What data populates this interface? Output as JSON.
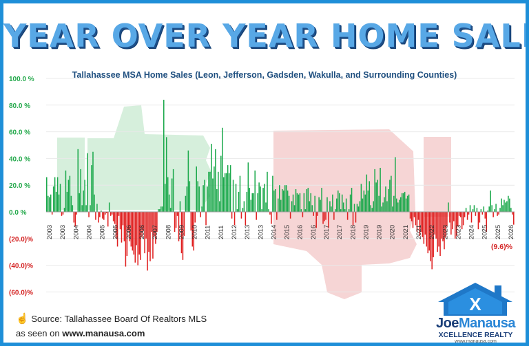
{
  "title": "YEAR OVER YEAR HOME SALES",
  "subtitle": "Tallahassee MSA Home Sales (Leon, Jefferson, Gadsden, Wakulla, and Surrounding Counties)",
  "source_label": "Source: Tallahassee Board Of Realtors MLS",
  "seen_prefix": "as seen on",
  "seen_site": "www.manausa.com",
  "brand": {
    "name_first": "Joe",
    "name_last": "Manausa",
    "tagline": "XCELLENCE REALTY",
    "url": "www.manausa.com",
    "monogram": "X"
  },
  "colors": {
    "positive": "#1ca94c",
    "negative": "#e01f1f",
    "positive_label": "#22a84a",
    "negative_label": "#d42323",
    "title": "#58a8e6",
    "frame": "#1e8fd8"
  },
  "chart_data": {
    "type": "bar",
    "ylim": [
      -60,
      100
    ],
    "yticks": [
      {
        "v": 100,
        "label": "100.0 %"
      },
      {
        "v": 80,
        "label": "80.0 %"
      },
      {
        "v": 60,
        "label": "60.0 %"
      },
      {
        "v": 40,
        "label": "40.0 %"
      },
      {
        "v": 20,
        "label": "20.0 %"
      },
      {
        "v": 0,
        "label": "0.0 %"
      },
      {
        "v": -20,
        "label": "(20.0)%"
      },
      {
        "v": -40,
        "label": "(40.0)%"
      },
      {
        "v": -60,
        "label": "(60.0)%"
      }
    ],
    "xlabels": [
      "2003",
      "2003",
      "2004",
      "2004",
      "2005",
      "2005",
      "2006",
      "2006",
      "2007",
      "2008",
      "2009",
      "2010",
      "2011",
      "2011",
      "2012",
      "2013",
      "2013",
      "2014",
      "2015",
      "2016",
      "2016",
      "2017",
      "2017",
      "2018",
      "2019",
      "2019",
      "2020",
      "2021",
      "2021",
      "2022",
      "2023",
      "2023",
      "2024",
      "2025",
      "2025",
      "2026"
    ],
    "annotation": {
      "label": "(9.6)%",
      "value": -9.6
    },
    "values": [
      26,
      12,
      11,
      13,
      -2,
      19,
      26,
      15,
      26,
      13,
      21,
      -3,
      -2,
      3,
      31,
      15,
      24,
      27,
      12,
      5,
      -8,
      -11,
      -2,
      47,
      14,
      32,
      5,
      16,
      24,
      5,
      44,
      -4,
      5,
      35,
      45,
      13,
      -6,
      6,
      -8,
      -4,
      1,
      -5,
      -6,
      -2,
      -1,
      -11,
      7,
      -3,
      -2,
      -7,
      -9,
      -20,
      -26,
      -3,
      -13,
      -23,
      -10,
      -22,
      -41,
      -33,
      -14,
      -22,
      -26,
      -29,
      -32,
      -38,
      -25,
      -40,
      -32,
      -36,
      -19,
      -14,
      -31,
      -20,
      -44,
      -30,
      -37,
      -15,
      -35,
      -18,
      -24,
      -15,
      2,
      2,
      4,
      4,
      84,
      21,
      56,
      26,
      13,
      3,
      25,
      32,
      -15,
      -12,
      -3,
      -22,
      8,
      -31,
      -36,
      -18,
      12,
      19,
      46,
      23,
      -14,
      -26,
      -29,
      -8,
      34,
      23,
      19,
      -4,
      4,
      20,
      24,
      -10,
      19,
      30,
      30,
      51,
      25,
      34,
      47,
      17,
      30,
      8,
      42,
      63,
      26,
      29,
      29,
      35,
      29,
      35,
      -5,
      24,
      -10,
      21,
      2,
      15,
      27,
      -5,
      3,
      8,
      -10,
      15,
      37,
      18,
      9,
      14,
      14,
      31,
      -6,
      14,
      22,
      19,
      2,
      18,
      21,
      7,
      30,
      2,
      -2,
      -9,
      27,
      16,
      17,
      -6,
      10,
      20,
      9,
      17,
      16,
      20,
      20,
      16,
      12,
      -5,
      8,
      13,
      5,
      17,
      14,
      13,
      14,
      2,
      -4,
      14,
      2,
      17,
      18,
      8,
      14,
      5,
      -3,
      12,
      -12,
      -3,
      11,
      9,
      18,
      -9,
      -7,
      -6,
      11,
      -12,
      8,
      4,
      13,
      -6,
      2,
      10,
      16,
      14,
      2,
      13,
      7,
      2,
      10,
      -6,
      2,
      13,
      18,
      -10,
      6,
      -8,
      6,
      4,
      8,
      21,
      10,
      16,
      13,
      28,
      16,
      23,
      5,
      3,
      8,
      32,
      22,
      24,
      12,
      33,
      4,
      7,
      11,
      19,
      8,
      17,
      24,
      27,
      4,
      12,
      41,
      10,
      7,
      9,
      11,
      14,
      14,
      15,
      10,
      12,
      13,
      -5,
      -7,
      -12,
      -4,
      -10,
      -15,
      -6,
      -18,
      -15,
      -19,
      -24,
      -17,
      -26,
      -31,
      -29,
      -37,
      -43,
      -34,
      -17,
      -20,
      -30,
      -26,
      -33,
      -20,
      -22,
      -28,
      -19,
      -11,
      7,
      -8,
      -17,
      -13,
      -7,
      -20,
      -18,
      -11,
      -3,
      -4,
      -13,
      -10,
      -4,
      3,
      -6,
      -2,
      5,
      -8,
      2,
      5,
      -3,
      3,
      -13,
      -8,
      2,
      -2,
      4,
      -5,
      -15,
      1,
      4,
      16,
      5,
      -4,
      2,
      6,
      -3,
      -2,
      3,
      10,
      5,
      9,
      7,
      8,
      12,
      10,
      3,
      -2,
      -9.6
    ]
  }
}
